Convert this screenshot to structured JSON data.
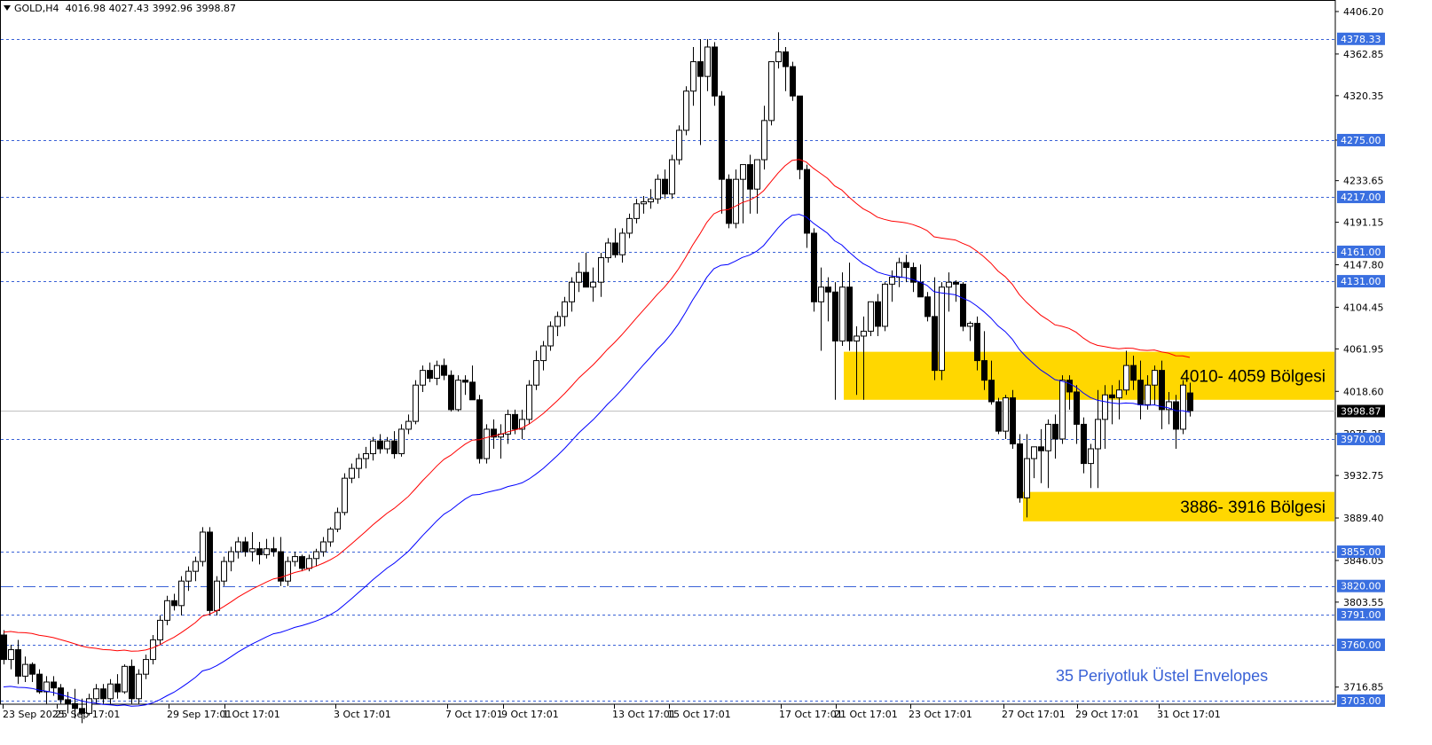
{
  "header": {
    "symbol": "GOLD,H4",
    "open": "4016.98",
    "high": "4027.43",
    "low": "3992.96",
    "close": "3998.87"
  },
  "colors": {
    "background": "#ffffff",
    "level_line": "#3a62d6",
    "label_bg": "#3a6fe0",
    "zone_fill": "#ffd700",
    "envelope_upper": "#ff0000",
    "envelope_lower": "#0000ff",
    "bid_line": "#c0c0c0",
    "annotation_text": "#3a62d6"
  },
  "chart_data": {
    "type": "candlestick",
    "title": "GOLD,H4",
    "ohlc_header": {
      "open": 4016.98,
      "high": 4027.43,
      "low": 3992.96,
      "close": 3998.87
    },
    "ylim": [
      3703.0,
      4406.2
    ],
    "y_ticks": [
      4406.2,
      4362.85,
      4320.35,
      4275.0,
      4233.65,
      4191.15,
      4147.8,
      4104.45,
      4061.95,
      4018.6,
      3975.25,
      3932.75,
      3889.4,
      3846.05,
      3803.55,
      3716.85
    ],
    "x_tick_labels": [
      "23 Sep 2025",
      "25 Sep 17:01",
      "29 Sep 17:01",
      "1 Oct 17:01",
      "3 Oct 17:01",
      "7 Oct 17:01",
      "9 Oct 17:01",
      "13 Oct 17:01",
      "15 Oct 17:01",
      "17 Oct 17:01",
      "21 Oct 17:01",
      "23 Oct 17:01",
      "27 Oct 17:01",
      "29 Oct 17:01",
      "31 Oct 17:01"
    ],
    "horizontal_levels": [
      {
        "price": 4378.33,
        "label": "4378.33",
        "style": "dotted"
      },
      {
        "price": 4275.0,
        "label": "4275.00",
        "style": "dotted"
      },
      {
        "price": 4217.0,
        "label": "4217.00",
        "style": "dotted"
      },
      {
        "price": 4161.0,
        "label": "4161.00",
        "style": "dotted"
      },
      {
        "price": 4131.0,
        "label": "4131.00",
        "style": "dotted"
      },
      {
        "price": 3970.0,
        "label": "3970.00",
        "style": "dotted"
      },
      {
        "price": 3855.0,
        "label": "3855.00",
        "style": "dotted"
      },
      {
        "price": 3820.0,
        "label": "3820.00",
        "style": "dashdot"
      },
      {
        "price": 3791.0,
        "label": "3791.00",
        "style": "dotted"
      },
      {
        "price": 3760.0,
        "label": "3760.00",
        "style": "dotted"
      },
      {
        "price": 3703.0,
        "label": "3703.00",
        "style": "dotted"
      }
    ],
    "current_price": {
      "price": 3998.87,
      "label": "3998.87"
    },
    "zones": [
      {
        "label": "4010- 4059 Bölgesi",
        "top": 4059,
        "bottom": 4010,
        "x_start": 951
      },
      {
        "label": "3886- 3916 Bölgesi",
        "top": 3916,
        "bottom": 3886,
        "x_start": 1153
      }
    ],
    "annotation": "35 Periyotluk Üstel Envelopes",
    "series": [
      {
        "name": "Envelope Upper (EMA 35)",
        "color": "#ff0000"
      },
      {
        "name": "Envelope Lower (EMA 35)",
        "color": "#0000ff"
      }
    ],
    "candles": [
      [
        3770,
        3775,
        3740,
        3745
      ],
      [
        3745,
        3760,
        3735,
        3755
      ],
      [
        3755,
        3765,
        3720,
        3728
      ],
      [
        3728,
        3748,
        3722,
        3740
      ],
      [
        3740,
        3742,
        3722,
        3730
      ],
      [
        3730,
        3735,
        3710,
        3712
      ],
      [
        3712,
        3728,
        3700,
        3722
      ],
      [
        3722,
        3728,
        3708,
        3716
      ],
      [
        3716,
        3720,
        3700,
        3704
      ],
      [
        3704,
        3712,
        3690,
        3700
      ],
      [
        3700,
        3715,
        3685,
        3695
      ],
      [
        3695,
        3705,
        3680,
        3690
      ],
      [
        3690,
        3710,
        3688,
        3705
      ],
      [
        3705,
        3720,
        3700,
        3715
      ],
      [
        3715,
        3720,
        3700,
        3705
      ],
      [
        3705,
        3725,
        3700,
        3720
      ],
      [
        3720,
        3730,
        3705,
        3712
      ],
      [
        3712,
        3740,
        3710,
        3738
      ],
      [
        3738,
        3745,
        3700,
        3705
      ],
      [
        3705,
        3735,
        3700,
        3730
      ],
      [
        3730,
        3750,
        3725,
        3745
      ],
      [
        3745,
        3770,
        3740,
        3765
      ],
      [
        3765,
        3790,
        3760,
        3785
      ],
      [
        3785,
        3810,
        3780,
        3805
      ],
      [
        3805,
        3812,
        3795,
        3800
      ],
      [
        3800,
        3830,
        3790,
        3825
      ],
      [
        3825,
        3840,
        3815,
        3835
      ],
      [
        3835,
        3850,
        3825,
        3845
      ],
      [
        3845,
        3880,
        3840,
        3875
      ],
      [
        3875,
        3880,
        3790,
        3795
      ],
      [
        3795,
        3830,
        3790,
        3825
      ],
      [
        3825,
        3850,
        3820,
        3845
      ],
      [
        3845,
        3860,
        3835,
        3855
      ],
      [
        3855,
        3870,
        3848,
        3865
      ],
      [
        3865,
        3870,
        3850,
        3855
      ],
      [
        3855,
        3875,
        3845,
        3858
      ],
      [
        3858,
        3865,
        3842,
        3852
      ],
      [
        3852,
        3868,
        3848,
        3858
      ],
      [
        3858,
        3870,
        3850,
        3855
      ],
      [
        3855,
        3870,
        3820,
        3825
      ],
      [
        3825,
        3850,
        3820,
        3845
      ],
      [
        3845,
        3855,
        3840,
        3850
      ],
      [
        3850,
        3852,
        3835,
        3838
      ],
      [
        3838,
        3852,
        3835,
        3848
      ],
      [
        3848,
        3858,
        3840,
        3855
      ],
      [
        3855,
        3870,
        3850,
        3865
      ],
      [
        3865,
        3880,
        3860,
        3878
      ],
      [
        3878,
        3900,
        3875,
        3895
      ],
      [
        3895,
        3935,
        3892,
        3930
      ],
      [
        3930,
        3945,
        3925,
        3940
      ],
      [
        3940,
        3955,
        3930,
        3950
      ],
      [
        3950,
        3962,
        3940,
        3955
      ],
      [
        3955,
        3972,
        3948,
        3968
      ],
      [
        3968,
        3975,
        3955,
        3960
      ],
      [
        3960,
        3972,
        3955,
        3968
      ],
      [
        3968,
        3978,
        3950,
        3955
      ],
      [
        3955,
        3985,
        3952,
        3980
      ],
      [
        3980,
        3995,
        3975,
        3988
      ],
      [
        3988,
        4030,
        3985,
        4025
      ],
      [
        4025,
        4045,
        4018,
        4040
      ],
      [
        4040,
        4048,
        4028,
        4032
      ],
      [
        4032,
        4050,
        4025,
        4045
      ],
      [
        4045,
        4052,
        4030,
        4035
      ],
      [
        4035,
        4040,
        3998,
        4000
      ],
      [
        4000,
        4035,
        3998,
        4030
      ],
      [
        4030,
        4035,
        4015,
        4028
      ],
      [
        4028,
        4045,
        4010,
        4010
      ],
      [
        4010,
        4015,
        3945,
        3950
      ],
      [
        3950,
        3985,
        3945,
        3980
      ],
      [
        3980,
        3990,
        3960,
        3972
      ],
      [
        3972,
        3985,
        3950,
        3975
      ],
      [
        3975,
        4000,
        3965,
        3995
      ],
      [
        3995,
        4000,
        3975,
        3980
      ],
      [
        3980,
        4000,
        3970,
        3990
      ],
      [
        3990,
        4030,
        3985,
        4025
      ],
      [
        4025,
        4060,
        4020,
        4050
      ],
      [
        4050,
        4070,
        4040,
        4065
      ],
      [
        4065,
        4090,
        4060,
        4085
      ],
      [
        4085,
        4100,
        4075,
        4095
      ],
      [
        4095,
        4115,
        4085,
        4110
      ],
      [
        4110,
        4135,
        4100,
        4130
      ],
      [
        4130,
        4150,
        4120,
        4140
      ],
      [
        4140,
        4160,
        4125,
        4125
      ],
      [
        4125,
        4145,
        4110,
        4130
      ],
      [
        4130,
        4160,
        4115,
        4155
      ],
      [
        4155,
        4175,
        4150,
        4170
      ],
      [
        4170,
        4185,
        4155,
        4158
      ],
      [
        4158,
        4185,
        4150,
        4180
      ],
      [
        4180,
        4200,
        4175,
        4195
      ],
      [
        4195,
        4215,
        4190,
        4210
      ],
      [
        4210,
        4218,
        4200,
        4212
      ],
      [
        4212,
        4225,
        4205,
        4215
      ],
      [
        4215,
        4240,
        4210,
        4235
      ],
      [
        4235,
        4245,
        4215,
        4220
      ],
      [
        4220,
        4260,
        4215,
        4255
      ],
      [
        4255,
        4290,
        4250,
        4285
      ],
      [
        4285,
        4330,
        4280,
        4325
      ],
      [
        4325,
        4370,
        4310,
        4355
      ],
      [
        4355,
        4378,
        4270,
        4340
      ],
      [
        4340,
        4378,
        4325,
        4370
      ],
      [
        4370,
        4375,
        4310,
        4320
      ],
      [
        4320,
        4325,
        4200,
        4235
      ],
      [
        4235,
        4240,
        4185,
        4190
      ],
      [
        4190,
        4245,
        4185,
        4235
      ],
      [
        4235,
        4250,
        4190,
        4250
      ],
      [
        4250,
        4260,
        4200,
        4225
      ],
      [
        4225,
        4255,
        4200,
        4255
      ],
      [
        4255,
        4310,
        4245,
        4295
      ],
      [
        4295,
        4355,
        4290,
        4355
      ],
      [
        4355,
        4385,
        4348,
        4365
      ],
      [
        4365,
        4370,
        4325,
        4350
      ],
      [
        4350,
        4355,
        4315,
        4320
      ],
      [
        4320,
        4320,
        4235,
        4245
      ],
      [
        4245,
        4250,
        4165,
        4180
      ],
      [
        4180,
        4185,
        4100,
        4110
      ],
      [
        4110,
        4145,
        4060,
        4125
      ],
      [
        4125,
        4135,
        4090,
        4120
      ],
      [
        4120,
        4130,
        4010,
        4070
      ],
      [
        4070,
        4140,
        4065,
        4125
      ],
      [
        4125,
        4150,
        4060,
        4070
      ],
      [
        4070,
        4085,
        4015,
        4075
      ],
      [
        4075,
        4095,
        4010,
        4080
      ],
      [
        4080,
        4110,
        4075,
        4110
      ],
      [
        4110,
        4118,
        4075,
        4085
      ],
      [
        4085,
        4130,
        4080,
        4128
      ],
      [
        4128,
        4142,
        4110,
        4135
      ],
      [
        4135,
        4155,
        4125,
        4150
      ],
      [
        4150,
        4158,
        4130,
        4145
      ],
      [
        4145,
        4150,
        4120,
        4130
      ],
      [
        4130,
        4148,
        4115,
        4115
      ],
      [
        4115,
        4120,
        4090,
        4095
      ],
      [
        4095,
        4135,
        4030,
        4040
      ],
      [
        4040,
        4130,
        4030,
        4125
      ],
      [
        4125,
        4140,
        4100,
        4130
      ],
      [
        4130,
        4132,
        4110,
        4128
      ],
      [
        4128,
        4130,
        4080,
        4085
      ],
      [
        4085,
        4090,
        4070,
        4088
      ],
      [
        4088,
        4095,
        4040,
        4050
      ],
      [
        4050,
        4080,
        4020,
        4030
      ],
      [
        4030,
        4050,
        4005,
        4008
      ],
      [
        4008,
        4012,
        3975,
        3978
      ],
      [
        3978,
        4015,
        3970,
        4012
      ],
      [
        4012,
        4020,
        3960,
        3965
      ],
      [
        3965,
        3975,
        3905,
        3910
      ],
      [
        3910,
        3975,
        3890,
        3950
      ],
      [
        3950,
        3960,
        3930,
        3962
      ],
      [
        3962,
        3980,
        3925,
        3958
      ],
      [
        3958,
        3990,
        3920,
        3985
      ],
      [
        3985,
        3995,
        3950,
        3970
      ],
      [
        3970,
        4035,
        3965,
        4030
      ],
      [
        4030,
        4035,
        4000,
        4018
      ],
      [
        4018,
        4025,
        3965,
        3985
      ],
      [
        3985,
        3992,
        3935,
        3945
      ],
      [
        3945,
        3965,
        3920,
        3960
      ],
      [
        3960,
        4020,
        3920,
        3990
      ],
      [
        3990,
        4025,
        3960,
        4015
      ],
      [
        4015,
        4025,
        3985,
        4012
      ],
      [
        4012,
        4030,
        3990,
        4020
      ],
      [
        4020,
        4060,
        4015,
        4045
      ],
      [
        4045,
        4055,
        4020,
        4030
      ],
      [
        4030,
        4050,
        3990,
        4005
      ],
      [
        4005,
        4035,
        4000,
        4025
      ],
      [
        4025,
        4045,
        4005,
        4040
      ],
      [
        4040,
        4050,
        3980,
        4000
      ],
      [
        4000,
        4018,
        3985,
        4008
      ],
      [
        4008,
        4015,
        3960,
        3980
      ],
      [
        3980,
        4030,
        3975,
        4025
      ],
      [
        4016.98,
        4027.43,
        3992.96,
        3998.87
      ]
    ]
  },
  "annotation": {
    "text": "35 Periyotluk Üstel Envelopes"
  }
}
